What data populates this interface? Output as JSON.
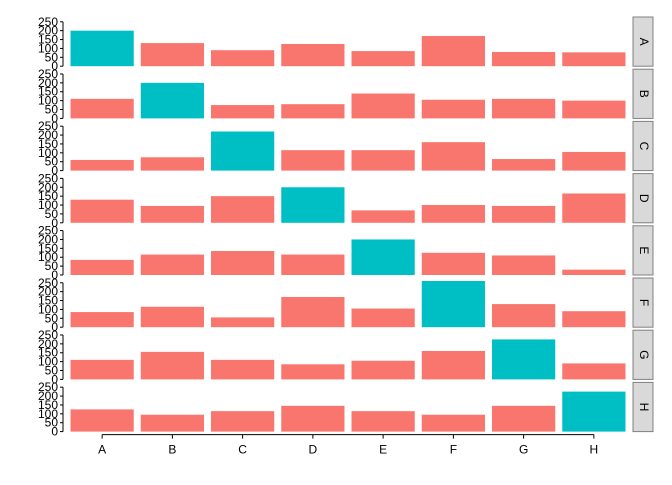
{
  "chart_data": {
    "type": "bar",
    "layout": "faceted-rows",
    "categories": [
      "A",
      "B",
      "C",
      "D",
      "E",
      "F",
      "G",
      "H"
    ],
    "facets": [
      {
        "label": "A",
        "values": [
          200,
          130,
          90,
          125,
          85,
          170,
          80,
          78
        ]
      },
      {
        "label": "B",
        "values": [
          110,
          200,
          75,
          80,
          140,
          105,
          110,
          100
        ]
      },
      {
        "label": "C",
        "values": [
          60,
          75,
          220,
          115,
          115,
          160,
          65,
          105
        ]
      },
      {
        "label": "D",
        "values": [
          130,
          95,
          150,
          200,
          70,
          100,
          95,
          165
        ]
      },
      {
        "label": "E",
        "values": [
          85,
          115,
          135,
          115,
          200,
          125,
          110,
          30
        ]
      },
      {
        "label": "F",
        "values": [
          85,
          115,
          55,
          170,
          105,
          260,
          130,
          90
        ]
      },
      {
        "label": "G",
        "values": [
          110,
          155,
          110,
          85,
          105,
          160,
          225,
          90
        ]
      },
      {
        "label": "H",
        "values": [
          125,
          95,
          115,
          145,
          115,
          95,
          145,
          225
        ]
      }
    ],
    "highlight_rule": "bar whose category matches the facet label",
    "colors": {
      "normal": "#F8766D",
      "highlight": "#00BFC4",
      "strip_fill": "#D9D9D9",
      "strip_border": "#808080"
    },
    "y_ticks": [
      0,
      50,
      100,
      150,
      200,
      250
    ],
    "ylim": [
      0,
      260
    ],
    "xlabel": "",
    "ylabel": "",
    "title": "",
    "legend": "none",
    "grid": false
  }
}
